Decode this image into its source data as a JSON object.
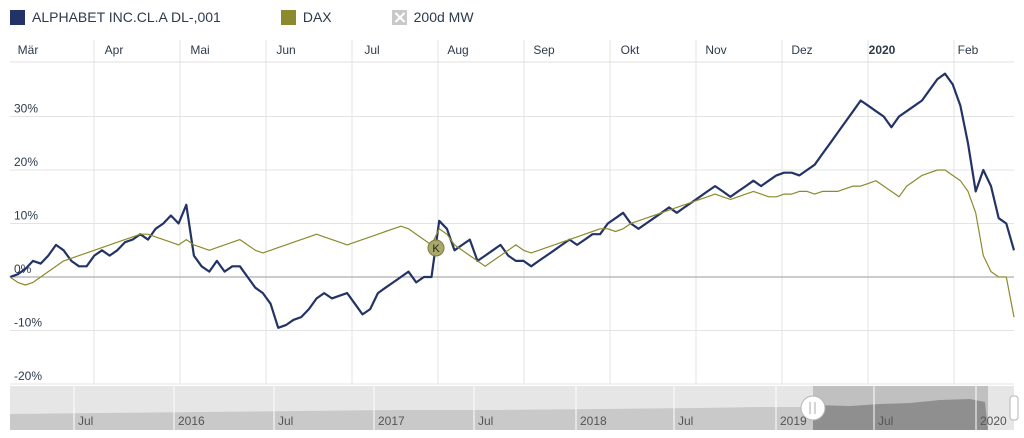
{
  "legend": [
    {
      "label": "ALPHABET INC.CL.A DL-,001",
      "color": "#233366"
    },
    {
      "label": "DAX",
      "color": "#8c8a2e"
    },
    {
      "label": "200d MW",
      "color": "#c9c9c9",
      "icon": "close-icon"
    }
  ],
  "marker": {
    "label": "K"
  },
  "navigator_labels": [
    "Jul",
    "2016",
    "Jul",
    "2017",
    "Jul",
    "2018",
    "Jul",
    "2019",
    "Jul",
    "2020"
  ],
  "chart_data": {
    "type": "line",
    "x_ticks": [
      "Mär",
      "Apr",
      "Mai",
      "Jun",
      "Jul",
      "Aug",
      "Sep",
      "Okt",
      "Nov",
      "Dez",
      "2020",
      "Feb"
    ],
    "y_ticks": [
      "30%",
      "20%",
      "10%",
      "0%",
      "-10%",
      "-20%"
    ],
    "ylim": [
      -20,
      40
    ],
    "series": [
      {
        "name": "ALPHABET INC.CL.A DL-,001",
        "color": "#233366",
        "values": [
          0,
          0.5,
          1.5,
          3,
          2.5,
          4,
          6,
          5,
          3,
          2,
          2,
          4,
          5,
          4,
          5,
          6.5,
          7,
          8,
          7,
          9,
          10,
          11.5,
          10,
          13.5,
          4,
          2,
          1,
          3,
          1,
          2,
          2,
          0,
          -2,
          -3,
          -5,
          -9.5,
          -9,
          -8,
          -7.5,
          -6,
          -4,
          -3,
          -4,
          -3.5,
          -3,
          -5,
          -7,
          -6,
          -3,
          -2,
          -1,
          0,
          1,
          -1,
          0,
          0,
          10.5,
          9,
          5,
          6,
          7,
          3,
          4,
          5,
          6,
          4,
          3,
          3,
          2,
          3,
          4,
          5,
          6,
          7,
          6,
          7,
          8,
          8,
          10,
          11,
          12,
          10,
          9,
          10,
          11,
          12,
          13,
          12,
          13,
          14,
          15,
          16,
          17,
          16,
          15,
          16,
          17,
          18,
          17,
          18,
          19,
          19.5,
          19.5,
          19,
          20,
          21,
          23,
          25,
          27,
          29,
          31,
          33,
          32,
          31,
          30,
          28,
          30,
          31,
          32,
          33,
          35,
          37,
          38,
          36,
          32,
          25,
          16,
          20,
          17,
          11,
          10,
          5
        ]
      },
      {
        "name": "DAX",
        "color": "#8c8a2e",
        "values": [
          0,
          -1,
          -1.5,
          -1,
          0,
          1,
          2,
          3,
          3.5,
          4,
          4.5,
          5,
          5.5,
          6,
          6.5,
          7,
          7.5,
          8,
          8,
          7.5,
          7,
          6.5,
          6,
          7,
          6,
          5.5,
          5,
          5.5,
          6,
          6.5,
          7,
          6,
          5,
          4.5,
          5,
          5.5,
          6,
          6.5,
          7,
          7.5,
          8,
          7.5,
          7,
          6.5,
          6,
          6.5,
          7,
          7.5,
          8,
          8.5,
          9,
          9.5,
          9,
          8,
          7,
          6,
          9,
          8,
          6,
          5,
          4,
          3,
          2,
          3,
          4,
          5,
          6,
          5,
          4.5,
          5,
          5.5,
          6,
          6.5,
          7,
          7.5,
          8,
          8.5,
          9,
          9,
          8.5,
          9,
          10,
          10.5,
          11,
          11.5,
          12,
          12.5,
          13,
          13.5,
          14,
          14.5,
          15,
          15.5,
          15,
          14.5,
          15,
          15.5,
          16,
          15.5,
          15,
          15,
          15.5,
          15.5,
          16,
          16,
          15.5,
          16,
          16,
          16,
          16.5,
          17,
          17,
          17.5,
          18,
          17,
          16,
          15,
          17,
          18,
          19,
          19.5,
          20,
          20,
          19,
          18,
          16,
          12,
          4,
          1,
          0,
          0,
          -7.5
        ]
      }
    ]
  }
}
